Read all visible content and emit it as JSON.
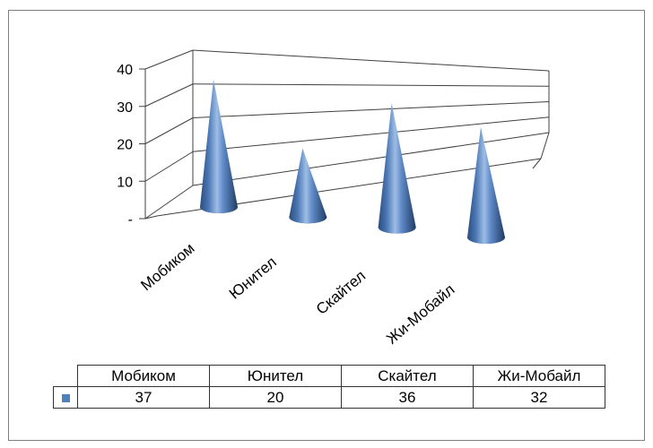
{
  "chart_data": {
    "type": "bar",
    "shape": "cone",
    "categories": [
      "Мобиком",
      "Юнител",
      "Скайтел",
      "Жи-Мобайл"
    ],
    "series": [
      {
        "values": [
          37,
          20,
          36,
          32
        ],
        "color": "#4f81bd"
      }
    ],
    "ylim": [
      0,
      40
    ],
    "yticks": [
      0,
      10,
      20,
      30,
      40
    ],
    "ytick_labels": [
      "-",
      "10",
      "20",
      "30",
      "40"
    ],
    "grid": true,
    "legend": "none",
    "data_table": {
      "headers": [
        "Мобиком",
        "Юнител",
        "Скайтел",
        "Жи-Мобайл"
      ],
      "values": [
        "37",
        "20",
        "36",
        "32"
      ]
    }
  }
}
